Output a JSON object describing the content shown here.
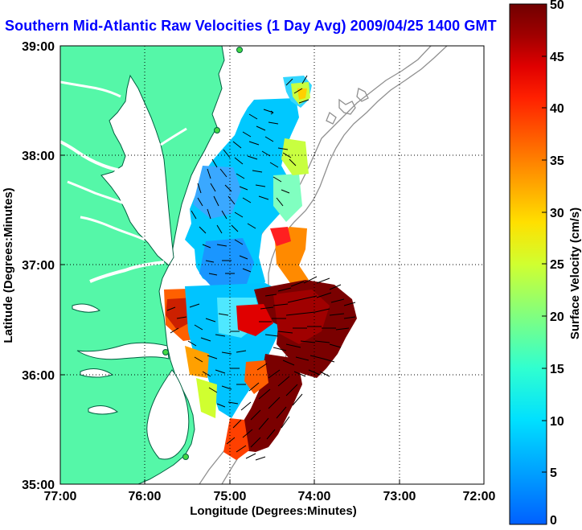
{
  "title": "Southern Mid-Atlantic Raw Velocities (1 Day Avg) 2009/04/25 1400 GMT",
  "x_axis": {
    "label": "Longitude (Degrees:Minutes)",
    "ticks": [
      "77:00",
      "76:00",
      "75:00",
      "74:00",
      "73:00",
      "72:00"
    ]
  },
  "y_axis": {
    "label": "Latitude (Degrees:Minutes)",
    "ticks": [
      "39:00",
      "38:00",
      "37:00",
      "36:00",
      "35:00"
    ]
  },
  "colorbar": {
    "label": "Surface Velocity (cm/s)",
    "ticks": [
      "50",
      "45",
      "40",
      "35",
      "30",
      "25",
      "20",
      "15",
      "10",
      "5",
      "0"
    ],
    "colors": [
      "#0060ff",
      "#00a0ff",
      "#00e0ff",
      "#30ffd0",
      "#80ff80",
      "#d0ff30",
      "#ffe000",
      "#ffa000",
      "#ff6000",
      "#ff2000",
      "#e00000",
      "#a00000",
      "#700000"
    ]
  },
  "colors": {
    "land": "#55f7a8",
    "water_boundary": "#006040",
    "bathymetry": "#909090",
    "grid": "#000000",
    "arrow": "#000000",
    "station": "#44d844"
  }
}
